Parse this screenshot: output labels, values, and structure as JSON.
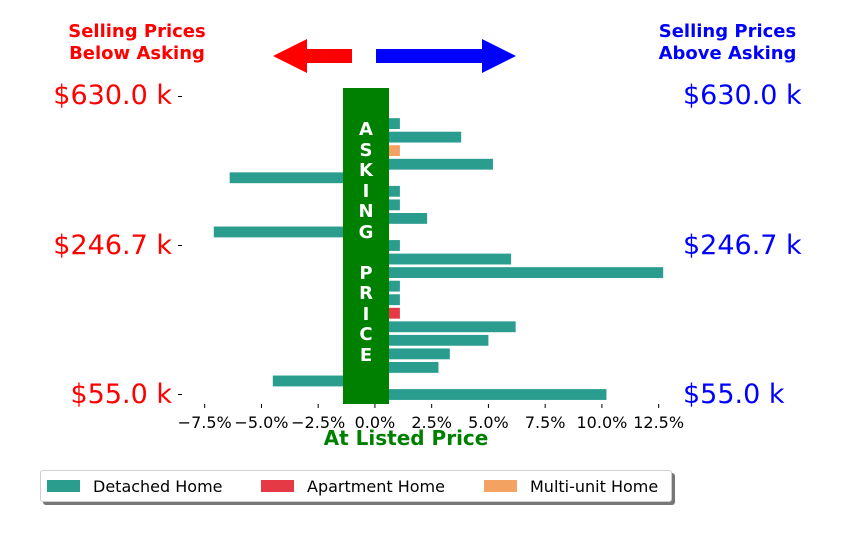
{
  "headers": {
    "left": "Selling Prices\nBelow Asking",
    "right": "Selling Prices\nAbove Asking",
    "left_color": "#ff0000",
    "right_color": "#0000ff"
  },
  "band": {
    "text": "A\nS\nK\nI\nN\nG\n\nP\nR\nI\nC\nE",
    "color": "#008000"
  },
  "chart_data": {
    "type": "bar",
    "orientation": "horizontal",
    "xlabel": "At Listed Price",
    "xlabel_color": "#008000",
    "xlim": [
      -0.085,
      0.13
    ],
    "xticks": [
      -0.075,
      -0.05,
      -0.025,
      0,
      0.025,
      0.05,
      0.075,
      0.1,
      0.125
    ],
    "xtick_labels": [
      "−7.5%",
      "−5.0%",
      "−2.5%",
      "0.0%",
      "2.5%",
      "5.0%",
      "7.5%",
      "10.0%",
      "12.5%"
    ],
    "ylim": [
      -0.7,
      22.7
    ],
    "price_ticks": [
      {
        "position": 0,
        "label": "$55.0 k"
      },
      {
        "position": 11,
        "label": "$246.7 k"
      },
      {
        "position": 22,
        "label": "$630.0 k"
      }
    ],
    "left_tick_color": "#ff0000",
    "right_tick_color": "#0000ff",
    "legend_placement": "bottom",
    "series": [
      {
        "name": "Detached Home",
        "color": "#2a9d8f"
      },
      {
        "name": "Apartment Home",
        "color": "#e63946"
      },
      {
        "name": "Multi-unit Home",
        "color": "#f4a261"
      }
    ],
    "bars": [
      {
        "position": 0,
        "value": 0.102,
        "type": "Detached Home"
      },
      {
        "position": 1,
        "value": -0.045,
        "type": "Detached Home"
      },
      {
        "position": 2,
        "value": 0.028,
        "type": "Detached Home"
      },
      {
        "position": 3,
        "value": 0.033,
        "type": "Detached Home"
      },
      {
        "position": 4,
        "value": 0.05,
        "type": "Detached Home"
      },
      {
        "position": 5,
        "value": 0.062,
        "type": "Detached Home"
      },
      {
        "position": 6,
        "value": 0.011,
        "type": "Apartment Home"
      },
      {
        "position": 7,
        "value": 0.011,
        "type": "Detached Home"
      },
      {
        "position": 8,
        "value": 0.011,
        "type": "Detached Home"
      },
      {
        "position": 9,
        "value": 0.127,
        "type": "Detached Home"
      },
      {
        "position": 10,
        "value": 0.06,
        "type": "Detached Home"
      },
      {
        "position": 11,
        "value": 0.011,
        "type": "Detached Home"
      },
      {
        "position": 12,
        "value": -0.071,
        "type": "Detached Home"
      },
      {
        "position": 13,
        "value": 0.023,
        "type": "Detached Home"
      },
      {
        "position": 14,
        "value": 0.011,
        "type": "Detached Home"
      },
      {
        "position": 15,
        "value": 0.011,
        "type": "Detached Home"
      },
      {
        "position": 16,
        "value": -0.064,
        "type": "Detached Home"
      },
      {
        "position": 17,
        "value": 0.052,
        "type": "Detached Home"
      },
      {
        "position": 18,
        "value": 0.011,
        "type": "Multi-unit Home"
      },
      {
        "position": 19,
        "value": 0.038,
        "type": "Detached Home"
      },
      {
        "position": 20,
        "value": 0.011,
        "type": "Detached Home"
      }
    ]
  }
}
